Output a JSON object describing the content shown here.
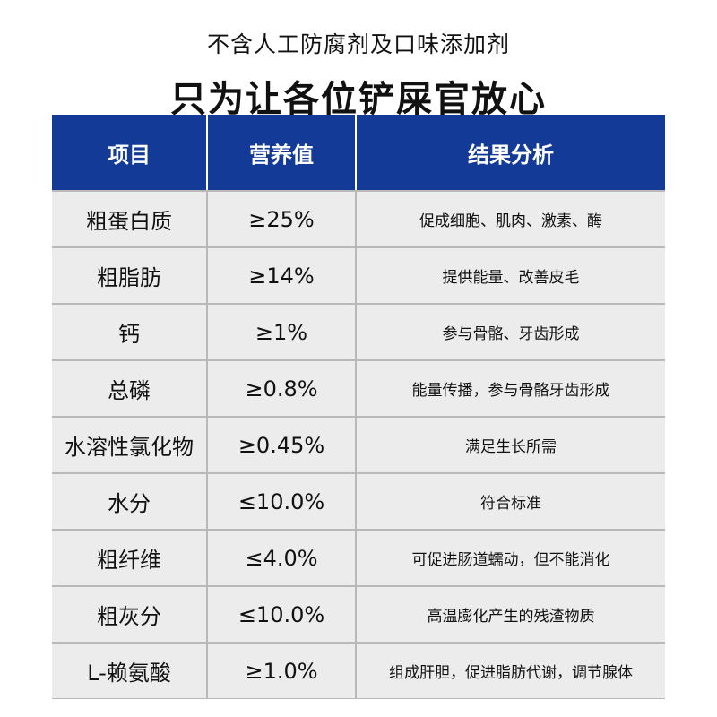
{
  "headline": {
    "sub": "不含人工防腐剂及口味添加剂",
    "main": "只为让各位铲屎官放心"
  },
  "table": {
    "headers": [
      "项目",
      "营养值",
      "结果分析"
    ],
    "rows": [
      {
        "item": "粗蛋白质",
        "value": "≥25%",
        "analysis": "促成细胞、肌肉、激素、酶"
      },
      {
        "item": "粗脂肪",
        "value": "≥14%",
        "analysis": "提供能量、改善皮毛"
      },
      {
        "item": "钙",
        "value": "≥1%",
        "analysis": "参与骨骼、牙齿形成"
      },
      {
        "item": "总磷",
        "value": "≥0.8%",
        "analysis": "能量传播，参与骨骼牙齿形成"
      },
      {
        "item": "水溶性氯化物",
        "value": "≥0.45%",
        "analysis": "满足生长所需"
      },
      {
        "item": "水分",
        "value": "≤10.0%",
        "analysis": "符合标准"
      },
      {
        "item": "粗纤维",
        "value": "≤4.0%",
        "analysis": "可促进肠道蠕动，但不能消化"
      },
      {
        "item": "粗灰分",
        "value": "≤10.0%",
        "analysis": "高温膨化产生的残渣物质"
      },
      {
        "item": "L-赖氨酸",
        "value": "≥1.0%",
        "analysis": "组成肝胆，促进脂肪代谢，调节腺体"
      }
    ]
  },
  "colors": {
    "header_bg": "#123a96",
    "row_bg": "#ececec",
    "grid": "#b9b9b9"
  }
}
